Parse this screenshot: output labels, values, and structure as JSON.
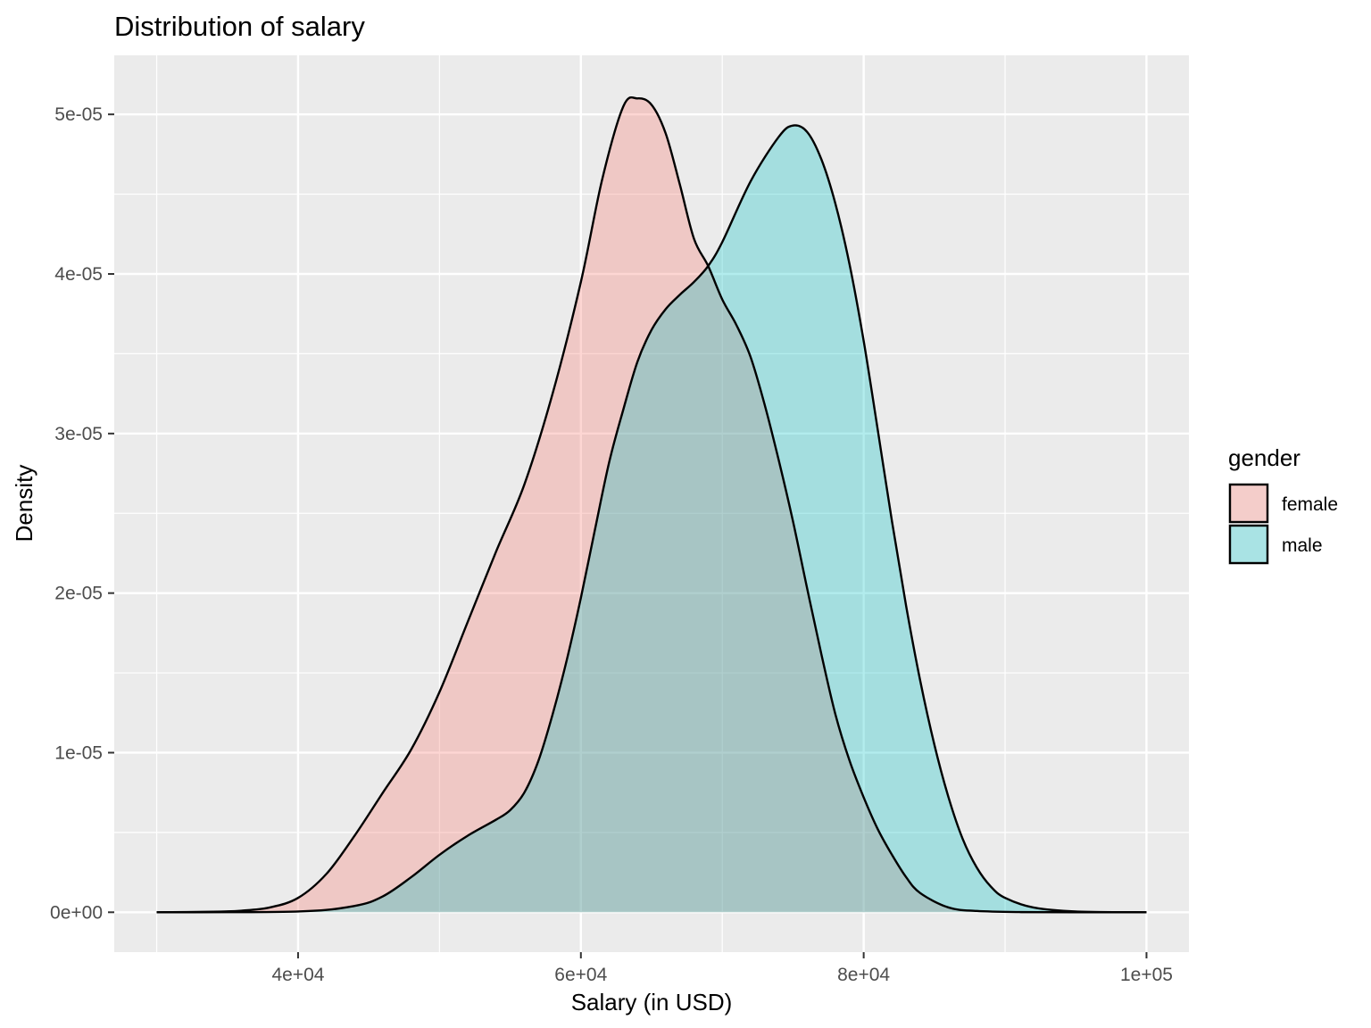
{
  "chart_data": {
    "type": "area",
    "title": "Distribution of salary",
    "xlabel": "Salary (in USD)",
    "ylabel": "Density",
    "xlim": [
      27000,
      103000
    ],
    "ylim": [
      -2.5e-06,
      5.37e-05
    ],
    "x_ticks": [
      {
        "value": 40000,
        "label": "4e+04"
      },
      {
        "value": 60000,
        "label": "6e+04"
      },
      {
        "value": 80000,
        "label": "8e+04"
      },
      {
        "value": 100000,
        "label": "1e+05"
      }
    ],
    "y_ticks": [
      {
        "value": 0,
        "label": "0e+00"
      },
      {
        "value": 1e-05,
        "label": "1e-05"
      },
      {
        "value": 2e-05,
        "label": "2e-05"
      },
      {
        "value": 3e-05,
        "label": "3e-05"
      },
      {
        "value": 4e-05,
        "label": "4e-05"
      },
      {
        "value": 5e-05,
        "label": "5e-05"
      }
    ],
    "grid": true,
    "legend": {
      "title": "gender",
      "position": "right"
    },
    "series": [
      {
        "name": "female",
        "color": "#F8766D",
        "points": [
          [
            30000,
            0
          ],
          [
            34000,
            3e-08
          ],
          [
            36000,
            1e-07
          ],
          [
            38000,
            3e-07
          ],
          [
            40000,
            9e-07
          ],
          [
            42000,
            2.4e-06
          ],
          [
            44000,
            4.8e-06
          ],
          [
            46000,
            7.5e-06
          ],
          [
            48000,
            1.02e-05
          ],
          [
            50000,
            1.38e-05
          ],
          [
            52000,
            1.82e-05
          ],
          [
            54000,
            2.26e-05
          ],
          [
            56000,
            2.68e-05
          ],
          [
            58000,
            3.25e-05
          ],
          [
            60000,
            3.95e-05
          ],
          [
            61500,
            4.59e-05
          ],
          [
            63000,
            5.05e-05
          ],
          [
            64000,
            5.1e-05
          ],
          [
            65000,
            5.06e-05
          ],
          [
            66000,
            4.88e-05
          ],
          [
            67000,
            4.56e-05
          ],
          [
            68000,
            4.22e-05
          ],
          [
            69000,
            4.05e-05
          ],
          [
            70000,
            3.84e-05
          ],
          [
            71000,
            3.68e-05
          ],
          [
            72000,
            3.48e-05
          ],
          [
            73000,
            3.18e-05
          ],
          [
            74000,
            2.83e-05
          ],
          [
            75000,
            2.45e-05
          ],
          [
            76000,
            2.03e-05
          ],
          [
            77000,
            1.62e-05
          ],
          [
            78000,
            1.24e-05
          ],
          [
            79000,
            9.5e-06
          ],
          [
            80000,
            7.2e-06
          ],
          [
            81000,
            5.2e-06
          ],
          [
            82000,
            3.6e-06
          ],
          [
            83000,
            2.2e-06
          ],
          [
            84000,
            1.2e-06
          ],
          [
            86000,
            3e-07
          ],
          [
            88000,
            8e-08
          ],
          [
            91000,
            1e-08
          ],
          [
            95000,
            0
          ],
          [
            100000,
            0
          ]
        ]
      },
      {
        "name": "male",
        "color": "#00BFC4",
        "points": [
          [
            30000,
            0
          ],
          [
            40000,
            5e-08
          ],
          [
            44000,
            4e-07
          ],
          [
            46000,
            1e-06
          ],
          [
            48000,
            2.2e-06
          ],
          [
            50000,
            3.6e-06
          ],
          [
            52000,
            4.8e-06
          ],
          [
            54000,
            5.8e-06
          ],
          [
            55000,
            6.4e-06
          ],
          [
            56000,
            7.5e-06
          ],
          [
            57000,
            9.5e-06
          ],
          [
            58000,
            1.24e-05
          ],
          [
            59000,
            1.58e-05
          ],
          [
            60000,
            1.97e-05
          ],
          [
            61000,
            2.4e-05
          ],
          [
            62000,
            2.82e-05
          ],
          [
            63000,
            3.15e-05
          ],
          [
            64000,
            3.45e-05
          ],
          [
            65000,
            3.65e-05
          ],
          [
            66000,
            3.78e-05
          ],
          [
            67000,
            3.87e-05
          ],
          [
            68000,
            3.95e-05
          ],
          [
            69000,
            4.05e-05
          ],
          [
            70000,
            4.2e-05
          ],
          [
            72000,
            4.58e-05
          ],
          [
            74000,
            4.86e-05
          ],
          [
            75000,
            4.93e-05
          ],
          [
            76000,
            4.89e-05
          ],
          [
            77000,
            4.72e-05
          ],
          [
            78000,
            4.44e-05
          ],
          [
            79000,
            4.06e-05
          ],
          [
            80000,
            3.58e-05
          ],
          [
            81000,
            3.02e-05
          ],
          [
            82000,
            2.45e-05
          ],
          [
            83000,
            1.92e-05
          ],
          [
            84000,
            1.45e-05
          ],
          [
            85000,
            1.05e-05
          ],
          [
            86000,
            7.2e-06
          ],
          [
            87000,
            4.6e-06
          ],
          [
            88000,
            2.8e-06
          ],
          [
            89000,
            1.6e-06
          ],
          [
            90000,
            9e-07
          ],
          [
            92000,
            3e-07
          ],
          [
            95000,
            5e-08
          ],
          [
            100000,
            0
          ]
        ]
      }
    ]
  }
}
